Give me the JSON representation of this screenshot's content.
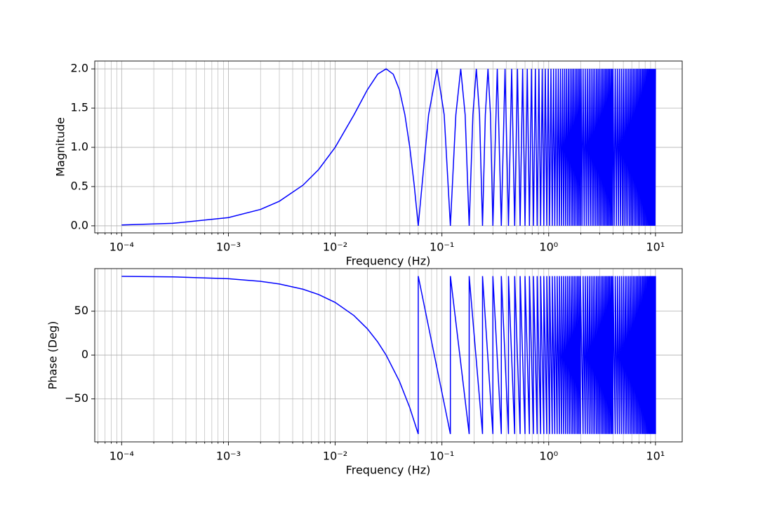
{
  "chart_data": [
    {
      "type": "line",
      "xscale": "log",
      "grid": true,
      "color": "#0000ff",
      "xlabel": "Frequency (Hz)",
      "ylabel": "Magnitude",
      "xlim": [
        5.6e-05,
        17.8
      ],
      "ylim": [
        -0.09,
        2.1
      ],
      "xticks": [
        {
          "value": 0.0001,
          "label": "10⁻⁴"
        },
        {
          "value": 0.001,
          "label": "10⁻³"
        },
        {
          "value": 0.01,
          "label": "10⁻²"
        },
        {
          "value": 0.1,
          "label": "10⁻¹"
        },
        {
          "value": 1,
          "label": "10⁰"
        },
        {
          "value": 10,
          "label": "10¹"
        }
      ],
      "xminorticks": [
        6e-05,
        7e-05,
        8e-05,
        9e-05,
        0.0002,
        0.0003,
        0.0004,
        0.0005,
        0.0006,
        0.0007,
        0.0008,
        0.0009,
        0.002,
        0.003,
        0.004,
        0.005,
        0.006,
        0.007,
        0.008,
        0.009,
        0.02,
        0.03,
        0.04,
        0.05,
        0.06,
        0.07,
        0.08,
        0.09,
        0.2,
        0.3,
        0.4,
        0.5,
        0.6,
        0.7,
        0.8,
        0.9,
        2,
        3,
        4,
        5,
        6,
        7,
        8,
        9
      ],
      "yticks": [
        {
          "value": 0,
          "label": "0.0"
        },
        {
          "value": 0.5,
          "label": "0.5"
        },
        {
          "value": 1,
          "label": "1.0"
        },
        {
          "value": 1.5,
          "label": "1.5"
        },
        {
          "value": 2,
          "label": "2.0"
        }
      ],
      "x": [
        0.0001,
        0.0003,
        0.001,
        0.002,
        0.003,
        0.005,
        0.007,
        0.01,
        0.015,
        0.02,
        0.025,
        0.03,
        0.035,
        0.04,
        0.045,
        0.05,
        0.055,
        0.06,
        0.075,
        0.09,
        0.105,
        0.12,
        0.135,
        0.15,
        0.165,
        0.18,
        0.195,
        0.21,
        0.225,
        0.24,
        0.255,
        0.27,
        0.285,
        0.3,
        0.33,
        0.36,
        0.39,
        0.42,
        0.45,
        0.48,
        0.51,
        0.54,
        0.57,
        0.6,
        0.63,
        0.66,
        0.69,
        0.72,
        0.75,
        0.78,
        0.81,
        0.84,
        0.87,
        0.9,
        0.93,
        0.96,
        0.99,
        1.02,
        1.05,
        1.08,
        1.11,
        1.14,
        1.17,
        1.2,
        1.23,
        1.26,
        1.29,
        1.32,
        1.35,
        1.38,
        1.41,
        1.44,
        1.47,
        1.5,
        1.53,
        1.56,
        1.59,
        1.62,
        1.65,
        1.68,
        1.71,
        1.74,
        1.77,
        1.8,
        1.83,
        1.86,
        1.89,
        1.92,
        1.95,
        1.98,
        2.01,
        2.05,
        2.1,
        2.15,
        2.2,
        2.25,
        2.3,
        2.35,
        2.4,
        2.45,
        2.5,
        2.55,
        2.6,
        2.65,
        2.7,
        2.75,
        2.8,
        2.85,
        2.9,
        2.95,
        3.0,
        3.05,
        3.1,
        3.15,
        3.2,
        3.25,
        3.3,
        3.35,
        3.4,
        3.45,
        3.5,
        3.55,
        3.6,
        3.65,
        3.7,
        3.75,
        3.8,
        3.85,
        3.9,
        3.95,
        4.0,
        4.1,
        4.2,
        4.3,
        4.4,
        4.5,
        4.6,
        4.7,
        4.8,
        4.9,
        5.0,
        5.1,
        5.2,
        5.3,
        5.4,
        5.5,
        5.6,
        5.7,
        5.8,
        5.9,
        6.0,
        6.1,
        6.2,
        6.3,
        6.4,
        6.5,
        6.6,
        6.7,
        6.8,
        6.9,
        7.0,
        7.1,
        7.2,
        7.3,
        7.4,
        7.5,
        7.6,
        7.7,
        7.8,
        7.9,
        8.0,
        8.1,
        8.2,
        8.3,
        8.4,
        8.5,
        8.6,
        8.7,
        8.8,
        8.9,
        9.0,
        9.1,
        9.2,
        9.3,
        9.4,
        9.5,
        9.6,
        9.7,
        9.8,
        9.9,
        10.0
      ],
      "values": [
        0.0105,
        0.0314,
        0.1047,
        0.209,
        0.313,
        0.518,
        0.717,
        1.0,
        1.414,
        1.732,
        1.932,
        2.0,
        1.932,
        1.732,
        1.414,
        1.0,
        0.518,
        0,
        1.414,
        2,
        1.414,
        0,
        1.414,
        2,
        1.414,
        0,
        1.414,
        2,
        1.414,
        0,
        1.414,
        2,
        1.414,
        0,
        2,
        0,
        2,
        0,
        2,
        0,
        2,
        0,
        2,
        0,
        2,
        0,
        2,
        0,
        2,
        0,
        2,
        0,
        2,
        0,
        2,
        0,
        2,
        0,
        2,
        0,
        2,
        0,
        2,
        0,
        2,
        0,
        2,
        0,
        2,
        0,
        2,
        0,
        2,
        0,
        2,
        0,
        2,
        0,
        2,
        0,
        2,
        0,
        2,
        0,
        2,
        0,
        2,
        0,
        2,
        0,
        2,
        0,
        2,
        0,
        2,
        0,
        2,
        0,
        2,
        0,
        2,
        0,
        2,
        0,
        2,
        0,
        2,
        0,
        2,
        0,
        2,
        0,
        2,
        0,
        2,
        0,
        2,
        0,
        2,
        0,
        2,
        0,
        2,
        0,
        2,
        0,
        2,
        0,
        2,
        0,
        2,
        0,
        2,
        0,
        2,
        0,
        2,
        0,
        2,
        0,
        2,
        0,
        2,
        0,
        2,
        0,
        2,
        0,
        2,
        0,
        2,
        0,
        2,
        0,
        2,
        0,
        2,
        0,
        2,
        0,
        2,
        0,
        2,
        0,
        2,
        0,
        2,
        0,
        2,
        0,
        2,
        0,
        2,
        0,
        2,
        0,
        2,
        0,
        2,
        0,
        2,
        0,
        2,
        0,
        2,
        0,
        2,
        0,
        2,
        0,
        2
      ]
    },
    {
      "type": "line",
      "xscale": "log",
      "grid": true,
      "color": "#0000ff",
      "xlabel": "Frequency (Hz)",
      "ylabel": "Phase (Deg)",
      "xlim": [
        5.6e-05,
        17.8
      ],
      "ylim": [
        -99,
        98.5
      ],
      "xticks": [
        {
          "value": 0.0001,
          "label": "10⁻⁴"
        },
        {
          "value": 0.001,
          "label": "10⁻³"
        },
        {
          "value": 0.01,
          "label": "10⁻²"
        },
        {
          "value": 0.1,
          "label": "10⁻¹"
        },
        {
          "value": 1,
          "label": "10⁰"
        },
        {
          "value": 10,
          "label": "10¹"
        }
      ],
      "xminorticks": [
        6e-05,
        7e-05,
        8e-05,
        9e-05,
        0.0002,
        0.0003,
        0.0004,
        0.0005,
        0.0006,
        0.0007,
        0.0008,
        0.0009,
        0.002,
        0.003,
        0.004,
        0.005,
        0.006,
        0.007,
        0.008,
        0.009,
        0.02,
        0.03,
        0.04,
        0.05,
        0.06,
        0.07,
        0.08,
        0.09,
        0.2,
        0.3,
        0.4,
        0.5,
        0.6,
        0.7,
        0.8,
        0.9,
        2,
        3,
        4,
        5,
        6,
        7,
        8,
        9
      ],
      "yticks": [
        {
          "value": -50,
          "label": "−50"
        },
        0,
        50
      ],
      "x": [
        0.0001,
        0.0003,
        0.001,
        0.002,
        0.003,
        0.005,
        0.007,
        0.01,
        0.015,
        0.02,
        0.025,
        0.03,
        0.04,
        0.05,
        0.06,
        0.06,
        0.12,
        0.12,
        0.18,
        0.18,
        0.24,
        0.24,
        0.3,
        0.3,
        0.36,
        0.36,
        0.42,
        0.42,
        0.48,
        0.48,
        0.54,
        0.54,
        0.6,
        0.6,
        0.66,
        0.66,
        0.72,
        0.72,
        0.78,
        0.78,
        0.84,
        0.84,
        0.9,
        0.9,
        0.96,
        0.96,
        1.02,
        1.02,
        1.08,
        1.08,
        1.14,
        1.14,
        1.2,
        1.2,
        1.26,
        1.26,
        1.32,
        1.32,
        1.38,
        1.38,
        1.44,
        1.44,
        1.5,
        1.5,
        1.56,
        1.56,
        1.62,
        1.62,
        1.68,
        1.68,
        1.74,
        1.74,
        1.8,
        1.8,
        1.86,
        1.86,
        1.92,
        1.92,
        1.98,
        1.98,
        2.1,
        2.1,
        2.2,
        2.2,
        2.3,
        2.3,
        2.4,
        2.4,
        2.5,
        2.5,
        2.6,
        2.6,
        2.7,
        2.7,
        2.8,
        2.8,
        2.9,
        2.9,
        3.0,
        3.0,
        3.1,
        3.1,
        3.2,
        3.2,
        3.3,
        3.3,
        3.4,
        3.4,
        3.5,
        3.5,
        3.6,
        3.6,
        3.7,
        3.7,
        3.8,
        3.8,
        3.9,
        3.9,
        4.0,
        4.0,
        4.2,
        4.2,
        4.4,
        4.4,
        4.6,
        4.6,
        4.8,
        4.8,
        5.0,
        5.0,
        5.2,
        5.2,
        5.4,
        5.4,
        5.6,
        5.6,
        5.8,
        5.8,
        6.0,
        6.0,
        6.2,
        6.2,
        6.4,
        6.4,
        6.6,
        6.6,
        6.8,
        6.8,
        7.0,
        7.0,
        7.2,
        7.2,
        7.4,
        7.4,
        7.6,
        7.6,
        7.8,
        7.8,
        8.0,
        8.0,
        8.2,
        8.2,
        8.4,
        8.4,
        8.6,
        8.6,
        8.8,
        8.8,
        9.0,
        9.0,
        9.2,
        9.2,
        9.4,
        9.4,
        9.6,
        9.6,
        9.8,
        9.8,
        10.0,
        10.0
      ],
      "values": [
        89.7,
        89.1,
        87,
        84,
        81,
        75,
        69,
        60,
        45,
        30,
        15,
        0,
        -30,
        -60,
        -90,
        90,
        -90,
        90,
        -90,
        90,
        -90,
        90,
        -90,
        90,
        -90,
        90,
        -90,
        90,
        -90,
        90,
        -90,
        90,
        -90,
        90,
        -90,
        90,
        -90,
        90,
        -90,
        90,
        -90,
        90,
        -90,
        90,
        -90,
        90,
        -90,
        90,
        -90,
        90,
        -90,
        90,
        -90,
        90,
        -90,
        90,
        -90,
        90,
        -90,
        90,
        -90,
        90,
        -90,
        90,
        -90,
        90,
        -90,
        90,
        -90,
        90,
        -90,
        90,
        -90,
        90,
        -90,
        90,
        -90,
        90,
        -90,
        90,
        -90,
        90,
        -90,
        90,
        -90,
        90,
        -90,
        90,
        -90,
        90,
        -90,
        90,
        -90,
        90,
        -90,
        90,
        -90,
        90,
        -90,
        90,
        -90,
        90,
        -90,
        90,
        -90,
        90,
        -90,
        90,
        -90,
        90,
        -90,
        90,
        -90,
        90,
        -90,
        90,
        -90,
        90,
        -90,
        90,
        -90,
        90,
        -90,
        90,
        -90,
        90,
        -90,
        90,
        -90,
        90,
        -90,
        90,
        -90,
        90,
        -90,
        90,
        -90,
        90,
        -90,
        90,
        -90,
        90,
        -90,
        90,
        -90,
        90,
        -90,
        90,
        -90,
        90,
        -90,
        90,
        -90,
        90,
        -90,
        90,
        -90,
        90,
        -90,
        90,
        -90,
        90,
        -90,
        90,
        -90,
        90,
        -90,
        90,
        -90,
        90,
        -90,
        90,
        -90,
        90,
        -90,
        90,
        -90,
        90,
        -90,
        90
      ]
    }
  ]
}
